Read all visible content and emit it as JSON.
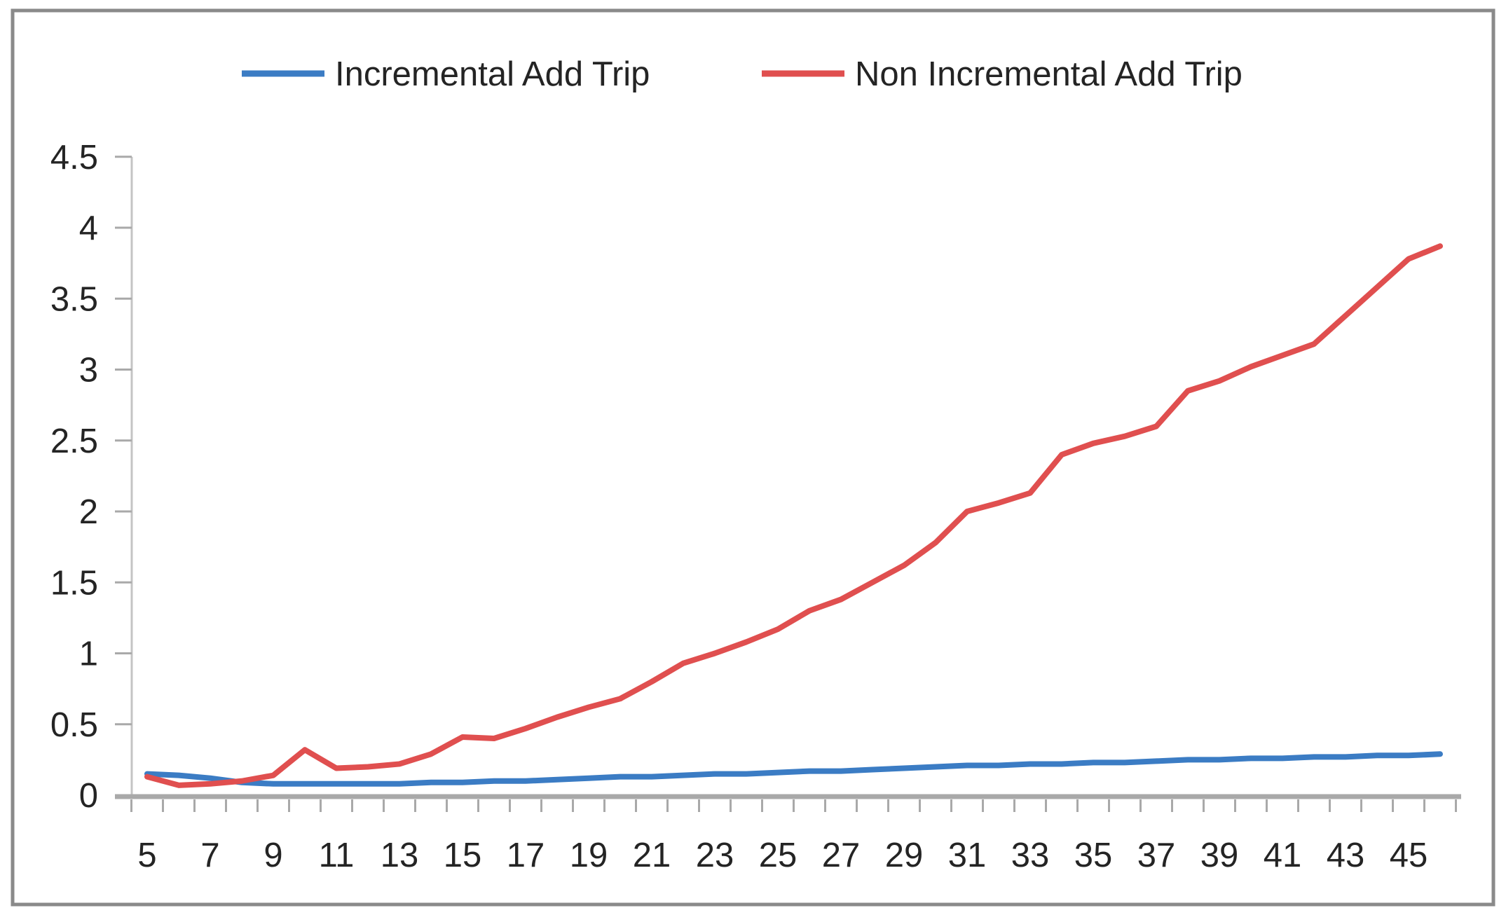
{
  "chart_data": {
    "type": "line",
    "title": "",
    "xlabel": "",
    "ylabel": "",
    "grid": false,
    "legend_position": "top",
    "xlim": [
      4.5,
      46.5
    ],
    "ylim": [
      0,
      4.5
    ],
    "x": [
      5,
      6,
      7,
      8,
      9,
      10,
      11,
      12,
      13,
      14,
      15,
      16,
      17,
      18,
      19,
      20,
      21,
      22,
      23,
      24,
      25,
      26,
      27,
      28,
      29,
      30,
      31,
      32,
      33,
      34,
      35,
      36,
      37,
      38,
      39,
      40,
      41,
      42,
      43,
      44,
      45,
      46
    ],
    "series": [
      {
        "name": "Incremental Add Trip",
        "color": "#3B7CC4",
        "values": [
          0.15,
          0.14,
          0.12,
          0.09,
          0.08,
          0.08,
          0.08,
          0.08,
          0.08,
          0.09,
          0.09,
          0.1,
          0.1,
          0.11,
          0.12,
          0.13,
          0.13,
          0.14,
          0.15,
          0.15,
          0.16,
          0.17,
          0.17,
          0.18,
          0.19,
          0.2,
          0.21,
          0.21,
          0.22,
          0.22,
          0.23,
          0.23,
          0.24,
          0.25,
          0.25,
          0.26,
          0.26,
          0.27,
          0.27,
          0.28,
          0.28,
          0.29
        ]
      },
      {
        "name": "Non Incremental Add Trip",
        "color": "#E04F4F",
        "values": [
          0.13,
          0.07,
          0.08,
          0.1,
          0.14,
          0.32,
          0.19,
          0.2,
          0.22,
          0.29,
          0.41,
          0.4,
          0.47,
          0.55,
          0.62,
          0.68,
          0.8,
          0.93,
          1.0,
          1.08,
          1.17,
          1.3,
          1.38,
          1.5,
          1.62,
          1.78,
          2.0,
          2.06,
          2.13,
          2.4,
          2.48,
          2.53,
          2.6,
          2.85,
          2.92,
          3.02,
          3.1,
          3.18,
          3.38,
          3.58,
          3.78,
          3.87
        ]
      }
    ],
    "x_tick_labels": [
      "5",
      "7",
      "9",
      "11",
      "13",
      "15",
      "17",
      "19",
      "21",
      "23",
      "25",
      "27",
      "29",
      "31",
      "33",
      "35",
      "37",
      "39",
      "41",
      "43",
      "45"
    ],
    "x_tick_label_values": [
      5,
      7,
      9,
      11,
      13,
      15,
      17,
      19,
      21,
      23,
      25,
      27,
      29,
      31,
      33,
      35,
      37,
      39,
      41,
      43,
      45
    ],
    "y_tick_labels": [
      "0",
      "0.5",
      "1",
      "1.5",
      "2",
      "2.5",
      "3",
      "3.5",
      "4",
      "4.5"
    ],
    "y_tick_values": [
      0,
      0.5,
      1,
      1.5,
      2,
      2.5,
      3,
      3.5,
      4,
      4.5
    ]
  },
  "colors": {
    "axis": "#A9A9A9",
    "y_axis_line": "#C4C4C4",
    "text": "#242424",
    "border": "#8A8A8A",
    "background": "#FFFFFF"
  }
}
